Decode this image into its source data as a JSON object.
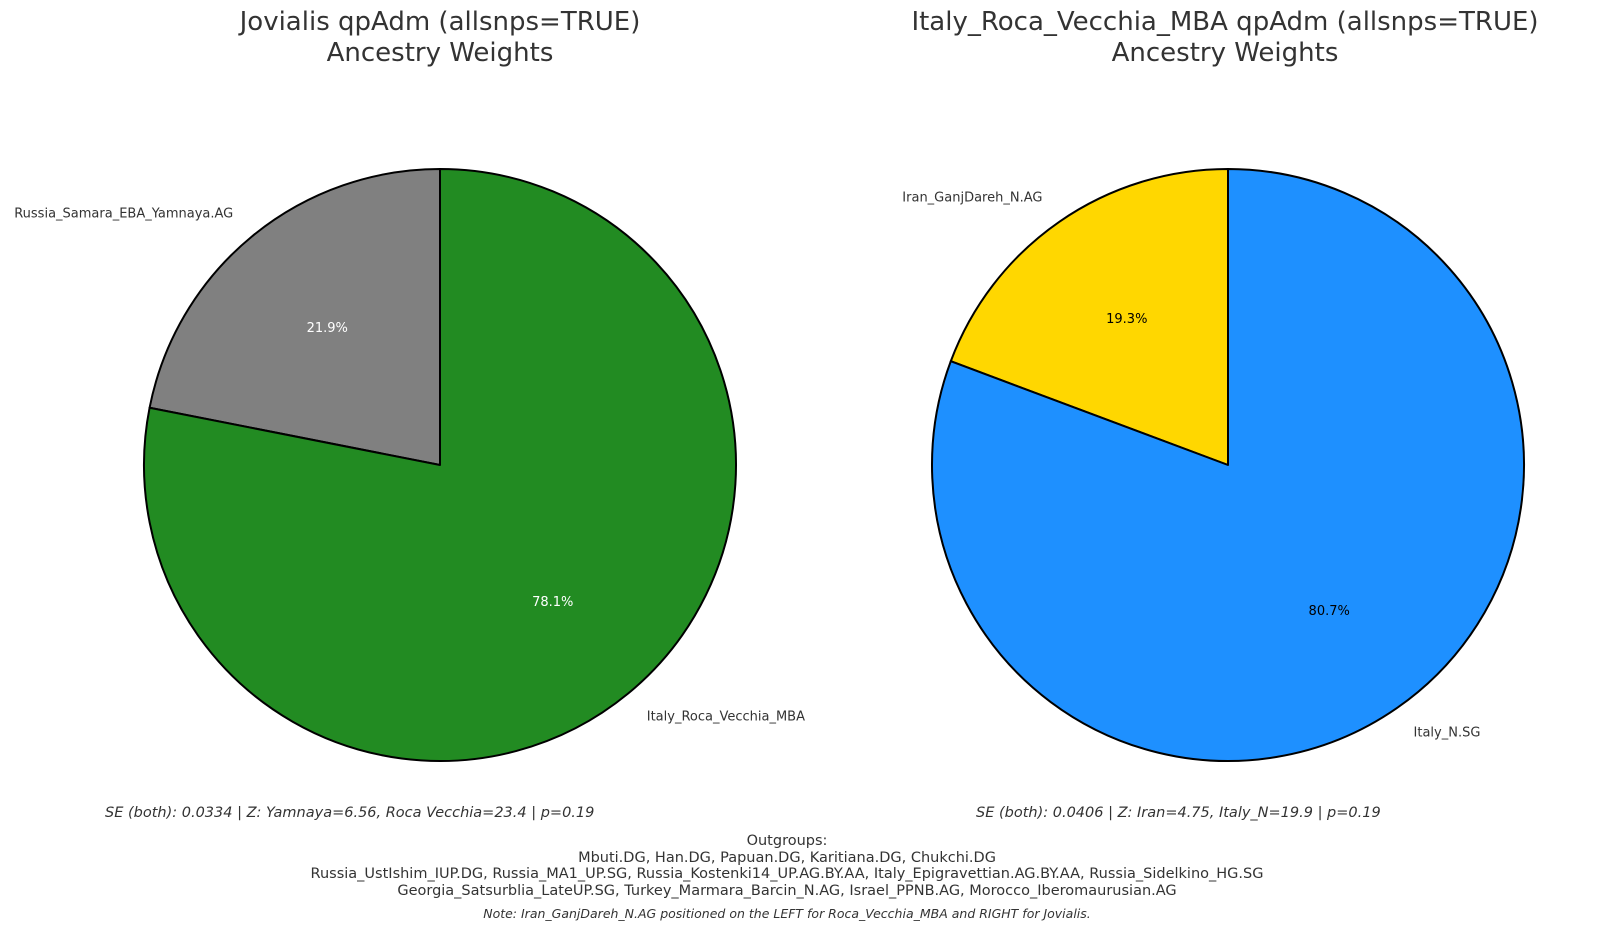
{
  "chart_data": [
    {
      "type": "pie",
      "title": "Jovialis qpAdm (allsnps=TRUE)",
      "subtitle": "Ancestry Weights",
      "slices": [
        {
          "label": "Russia_Samara_EBA_Yamnaya.AG",
          "value": 21.9,
          "pct_label": "21.9%",
          "color": "#808080",
          "pct_color": "#ffffff"
        },
        {
          "label": "Italy_Roca_Vecchia_MBA",
          "value": 78.1,
          "pct_label": "78.1%",
          "color": "#228B22",
          "pct_color": "#ffffff"
        }
      ],
      "stats": "SE (both): 0.0334   |   Z: Yamnaya=6.56, Roca Vecchia=23.4   |   p=0.19"
    },
    {
      "type": "pie",
      "title": "Italy_Roca_Vecchia_MBA qpAdm (allsnps=TRUE)",
      "subtitle": "Ancestry Weights",
      "slices": [
        {
          "label": "Iran_GanjDareh_N.AG",
          "value": 19.3,
          "pct_label": "19.3%",
          "color": "#FFD700",
          "pct_color": "#000000"
        },
        {
          "label": "Italy_N.SG",
          "value": 80.7,
          "pct_label": "80.7%",
          "color": "#1E90FF",
          "pct_color": "#000000"
        }
      ],
      "stats": "SE (both): 0.0406   |   Z: Iran=4.75, Italy_N=19.9   |   p=0.19"
    }
  ],
  "outgroups": {
    "heading": "Outgroups:",
    "lines": [
      "Mbuti.DG, Han.DG, Papuan.DG, Karitiana.DG, Chukchi.DG",
      "Russia_UstIshim_IUP.DG, Russia_MA1_UP.SG, Russia_Kostenki14_UP.AG.BY.AA, Italy_Epigravettian.AG.BY.AA, Russia_Sidelkino_HG.SG",
      "Georgia_Satsurblia_LateUP.SG, Turkey_Marmara_Barcin_N.AG, Israel_PPNB.AG, Morocco_Iberomaurusian.AG"
    ]
  },
  "note": "Note: Iran_GanjDareh_N.AG positioned on the LEFT for Roca_Vecchia_MBA and RIGHT for Jovialis."
}
